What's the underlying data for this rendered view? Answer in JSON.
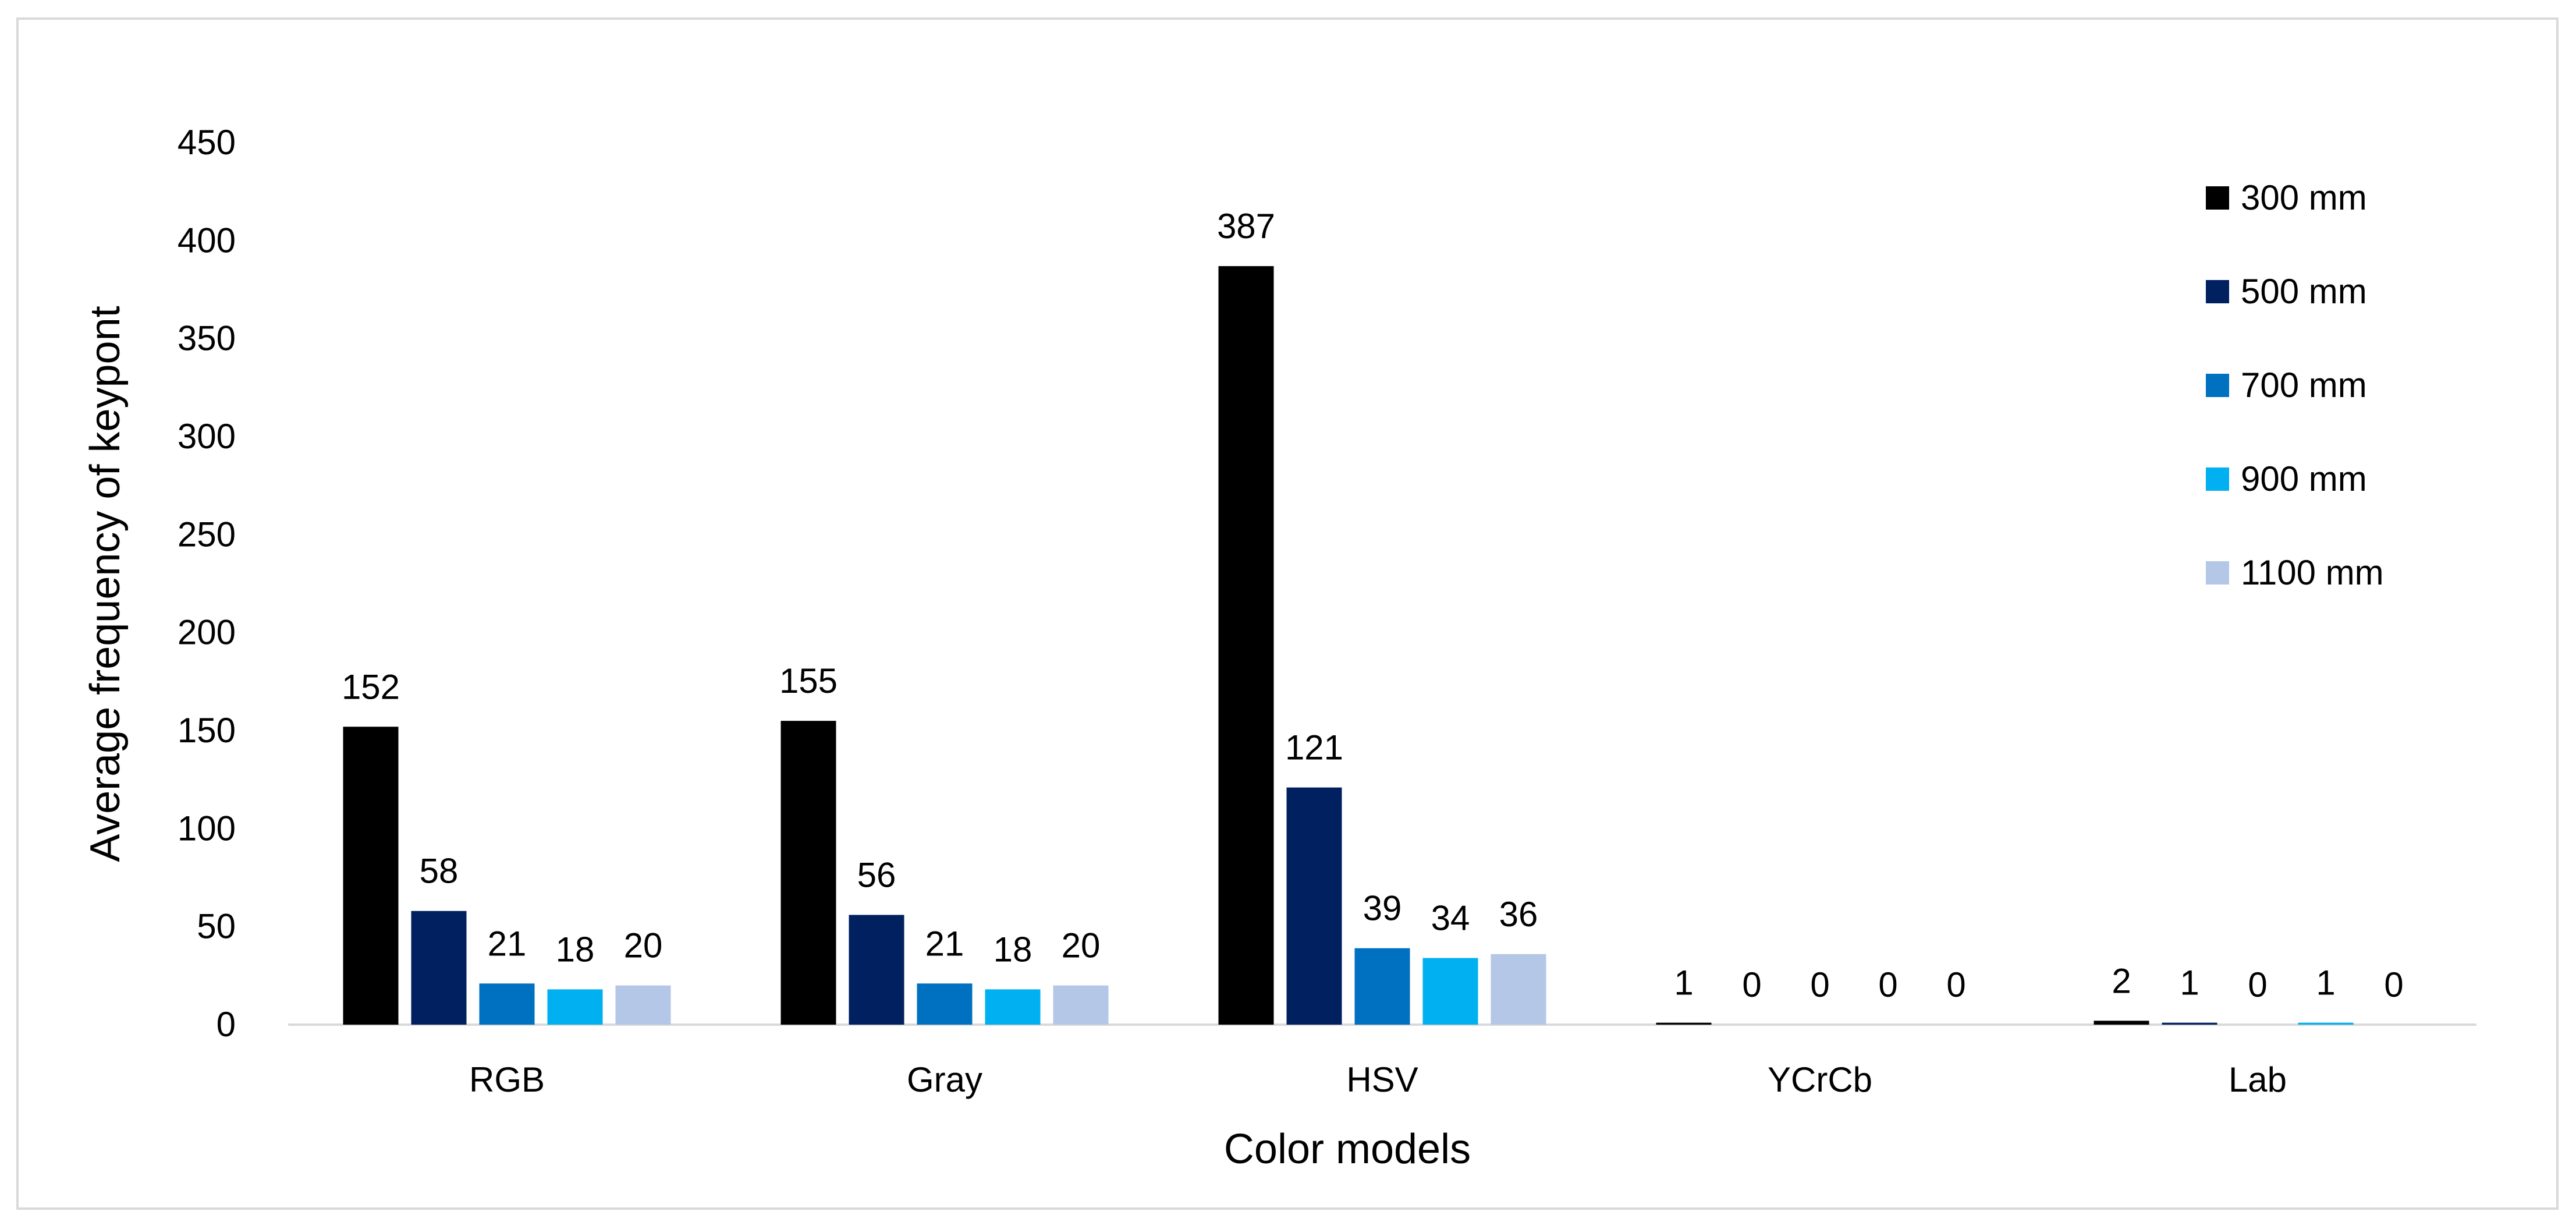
{
  "chart_data": {
    "type": "bar",
    "title": "",
    "xlabel": "Color models",
    "ylabel": "Average frequency of keypont",
    "categories": [
      "RGB",
      "Gray",
      "HSV",
      "YCrCb",
      "Lab"
    ],
    "ylim": [
      0,
      450
    ],
    "yticks": [
      0,
      50,
      100,
      150,
      200,
      250,
      300,
      350,
      400,
      450
    ],
    "grid": false,
    "legend_position": "right",
    "series": [
      {
        "name": "300 mm",
        "color": "#000000",
        "values": [
          152,
          155,
          387,
          1,
          2
        ]
      },
      {
        "name": "500 mm",
        "color": "#002060",
        "values": [
          58,
          56,
          121,
          0,
          1
        ]
      },
      {
        "name": "700 mm",
        "color": "#0070c0",
        "values": [
          21,
          21,
          39,
          0,
          0
        ]
      },
      {
        "name": "900 mm",
        "color": "#00b0f0",
        "values": [
          18,
          18,
          34,
          0,
          1
        ]
      },
      {
        "name": "1100 mm",
        "color": "#b4c7e7",
        "values": [
          20,
          20,
          36,
          0,
          0
        ]
      }
    ]
  }
}
